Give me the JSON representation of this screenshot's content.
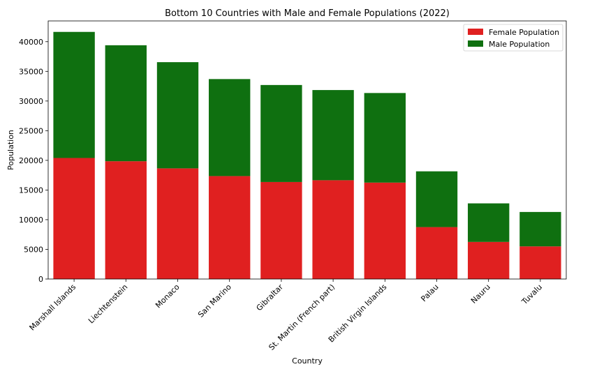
{
  "chart_data": {
    "type": "bar",
    "stacked": true,
    "title": "Bottom 10 Countries with Male and Female Populations (2022)",
    "xlabel": "Country",
    "ylabel": "Population",
    "ylim": [
      0,
      43500
    ],
    "yticks": [
      0,
      5000,
      10000,
      15000,
      20000,
      25000,
      30000,
      35000,
      40000
    ],
    "grid": false,
    "legend_position": "top-right",
    "categories": [
      "Marshall Islands",
      "Liechtenstein",
      "Monaco",
      "San Marino",
      "Gibraltar",
      "St. Martin (French part)",
      "British Virgin Islands",
      "Palau",
      "Nauru",
      "Tuvalu"
    ],
    "series": [
      {
        "name": "Female Population",
        "color": "#e02020",
        "values": [
          20400,
          19850,
          18650,
          17350,
          16350,
          16650,
          16250,
          8750,
          6250,
          5500
        ]
      },
      {
        "name": "Male Population",
        "color": "#0f7010",
        "values": [
          21250,
          19550,
          17900,
          16350,
          16350,
          15200,
          15100,
          9400,
          6500,
          5800
        ]
      }
    ]
  }
}
